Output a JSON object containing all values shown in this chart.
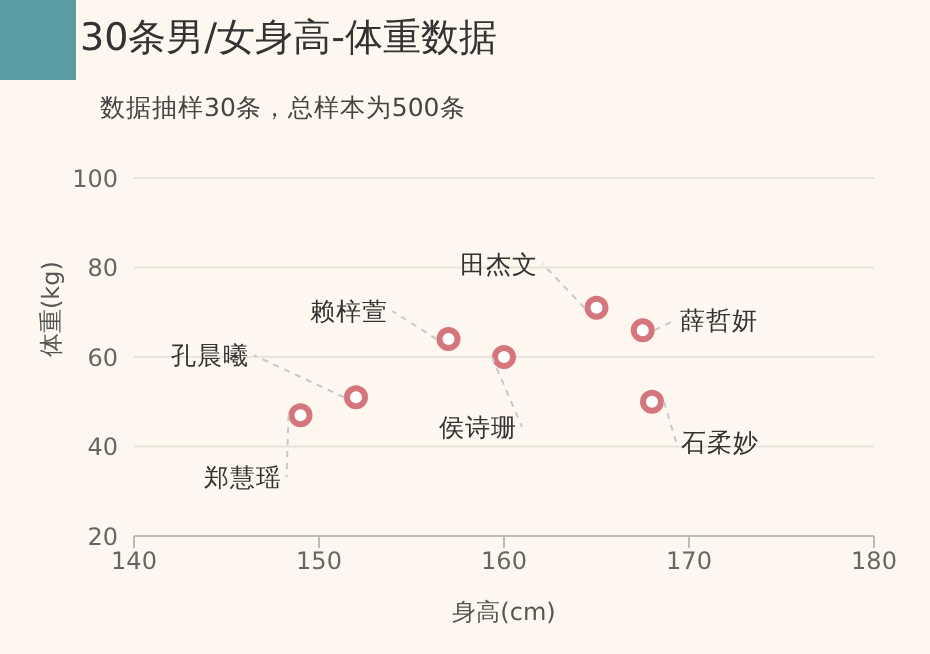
{
  "chart_data": {
    "type": "scatter",
    "title": "30条男/女身高-体重数据",
    "subtitle": "数据抽样30条，总样本为500条",
    "xlabel": "身高(cm)",
    "ylabel": "体重(kg)",
    "x": [
      149,
      152,
      157,
      160,
      165,
      167.5,
      168
    ],
    "values": [
      47,
      51,
      64,
      60,
      71,
      66,
      50
    ],
    "color": "#d4767c",
    "marker": "circle",
    "xlim": [
      140,
      180
    ],
    "xticks": [
      140,
      150,
      160,
      170,
      180
    ],
    "ylim": [
      20,
      100
    ],
    "yticks": [
      20,
      40,
      60,
      80,
      100
    ],
    "grid": "y",
    "annotations": [
      {
        "text": "郑慧瑶",
        "x": 149,
        "y": 47
      },
      {
        "text": "孔晨曦",
        "x": 152,
        "y": 51
      },
      {
        "text": "赖梓萱",
        "x": 157,
        "y": 64
      },
      {
        "text": "侯诗珊",
        "x": 160,
        "y": 60
      },
      {
        "text": "田杰文",
        "x": 165,
        "y": 71
      },
      {
        "text": "薛哲妍",
        "x": 167.5,
        "y": 66
      },
      {
        "text": "石柔妙",
        "x": 168,
        "y": 50
      }
    ]
  }
}
